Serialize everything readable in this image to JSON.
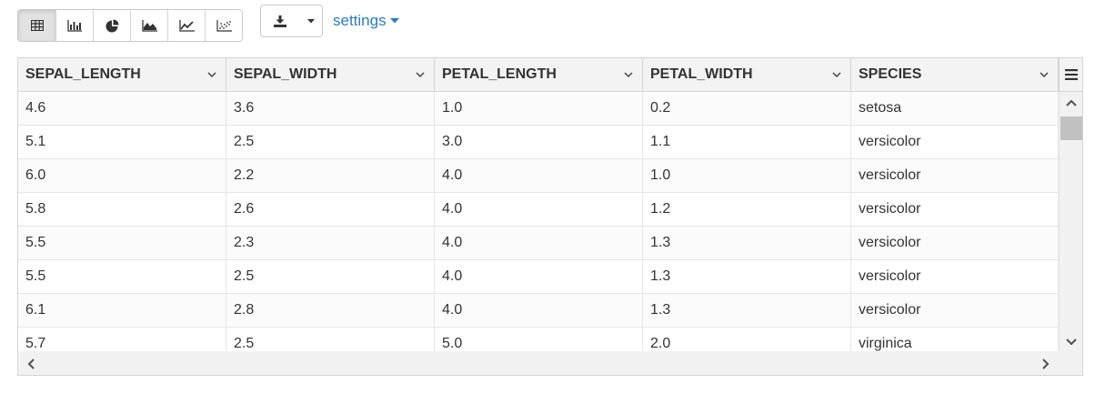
{
  "toolbar": {
    "viz_buttons": [
      {
        "icon": "table-icon",
        "active": true
      },
      {
        "icon": "bar-chart-icon",
        "active": false
      },
      {
        "icon": "pie-chart-icon",
        "active": false
      },
      {
        "icon": "area-chart-icon",
        "active": false
      },
      {
        "icon": "line-chart-icon",
        "active": false
      },
      {
        "icon": "scatter-chart-icon",
        "active": false
      }
    ],
    "download_icon": "download-icon",
    "settings_label": "settings"
  },
  "grid": {
    "columns": [
      "SEPAL_LENGTH",
      "SEPAL_WIDTH",
      "PETAL_LENGTH",
      "PETAL_WIDTH",
      "SPECIES"
    ],
    "rows": [
      [
        "4.6",
        "3.6",
        "1.0",
        "0.2",
        "setosa"
      ],
      [
        "5.1",
        "2.5",
        "3.0",
        "1.1",
        "versicolor"
      ],
      [
        "6.0",
        "2.2",
        "4.0",
        "1.0",
        "versicolor"
      ],
      [
        "5.8",
        "2.6",
        "4.0",
        "1.2",
        "versicolor"
      ],
      [
        "5.5",
        "2.3",
        "4.0",
        "1.3",
        "versicolor"
      ],
      [
        "5.5",
        "2.5",
        "4.0",
        "1.3",
        "versicolor"
      ],
      [
        "6.1",
        "2.8",
        "4.0",
        "1.3",
        "versicolor"
      ],
      [
        "5.7",
        "2.5",
        "5.0",
        "2.0",
        "virginica"
      ]
    ]
  },
  "colors": {
    "link": "#337ab7",
    "header_bg": "#f3f3f3",
    "border": "#d4d4d4"
  }
}
